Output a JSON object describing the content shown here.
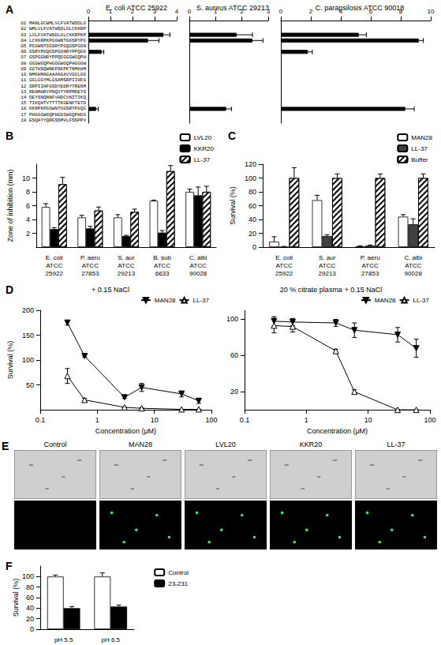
{
  "chart_data": [
    {
      "panel": "A",
      "type": "bar",
      "orientation": "horizontal",
      "title": "E. coli ATCC 25922",
      "categories": [
        "01 MANLGCWMLVLFVATWSDLG",
        "02 WMLVLFVATWSDLGLCKKRP",
        "03 LVLFVATWSDLGLCKKRPKP",
        "04 LCKKRPKPGGWNTGGSRYPG",
        "05 PGGWNTGGSRYPGQGSPGGN",
        "06 GSRYPGQGSPGGNRYPPQGG",
        "07 GSPGGNRYPPQGGGGWGQPH",
        "08 GGGWGQPHGGGWGQPHGGGW",
        "09 GGTHSQWNKPSKPKTNMKHM",
        "10 NMKHMAGAAAAGAVVGGLGG",
        "11 GGLGGYMLGSAMSRPIIHFG",
        "12 SRPIIHFGSDYEDRYYRENM",
        "13 RENMHRYPNQVYYRPMDEYS",
        "14 DEYSNQNNFVHDCVNITIKQ",
        "15 TIKQHTVTTTTKGENFTETD",
        "16 KKRPKPGGWNTGGSRYPGQG",
        "17 PHGGGWGQPHGGGWGQPHGG",
        "18 ESQAYYQRGSSMVLFSSPPV"
      ],
      "xlim": [
        0,
        4
      ],
      "xticks": [
        0,
        1,
        2,
        3,
        4
      ],
      "series": [
        {
          "name": "E. coli ATCC 25922",
          "color": "#000000",
          "values": [
            null,
            null,
            3.4,
            2.7,
            null,
            0.6,
            null,
            null,
            null,
            null,
            null,
            null,
            null,
            null,
            null,
            0.35,
            null,
            null
          ],
          "errors": [
            null,
            null,
            0.3,
            0.5,
            null,
            0.1,
            null,
            null,
            null,
            null,
            null,
            null,
            null,
            null,
            null,
            0.1,
            null,
            null
          ]
        }
      ]
    },
    {
      "type": "bar",
      "orientation": "horizontal",
      "title": "S. aureus ATCC 29213",
      "tick_labels": "x",
      "categories": [
        "01 MANLGCWMLVLFVATWSDLG",
        "02 WMLVLFVATWSDLGLCKKRP",
        "03 LVLFVATWSDLGLCKKRPKP",
        "04 LCKKRPKPGGWNTGGSRYPG",
        "05 PGGWNTGGSRYPGQGSPGGN",
        "06 GSRYPGQGSPGGNRYPPQGG",
        "07 GSPGGNRYPPQGGGGWGQPH",
        "08 GGGWGQPHGGGWGQPHGGGW",
        "09 GGTHSQWNKPSKPKTNMKHM",
        "10 NMKHMAGAAAAGAVVGGLGG",
        "11 GGLGGYMLGSAMSRPIIHFG",
        "12 SRPIIHFGSDYEDRYYRENM",
        "13 RENMHRYPNQVYYRPMDEYS",
        "14 DEYSNQNNFVHDCVNITIKQ",
        "15 TIKQHTVTTTTKGENFTETD",
        "16 KKRPKPGGWNTGGSRYPGQG",
        "17 PHGGGWGQPHGGGWGQPHGG",
        "18 ESQAYYQRGSSMVLFSSPPV"
      ],
      "xlim": [
        0,
        3
      ],
      "xticks": [
        0,
        1,
        2,
        3
      ],
      "series": [
        {
          "name": "S. aureus ATCC 29213",
          "color": "#000000",
          "values": [
            null,
            null,
            1.8,
            2.4,
            null,
            null,
            null,
            null,
            null,
            null,
            null,
            null,
            null,
            null,
            null,
            1.4,
            null,
            null
          ],
          "errors": [
            null,
            null,
            0.6,
            0.4,
            null,
            null,
            null,
            null,
            null,
            null,
            null,
            null,
            null,
            null,
            null,
            0.2,
            null,
            null
          ]
        }
      ]
    },
    {
      "type": "bar",
      "orientation": "horizontal",
      "title": "C. parapsilosis ATCC 90018",
      "tick_labels": "x",
      "categories": [
        "01 MANLGCWMLVLFVATWSDLG",
        "02 WMLVLFVATWSDLGLCKKRP",
        "03 LVLFVATWSDLGLCKKRPKP",
        "04 LCKKRPKPGGWNTGGSRYPG",
        "05 PGGWNTGGSRYPGQGSPGGN",
        "06 GSRYPGQGSPGGNRYPPQGG",
        "07 GSPGGNRYPPQGGGGWGQPH",
        "08 GGGWGQPHGGGWGQPHGGGW",
        "09 GGTHSQWNKPSKPKTNMKHM",
        "10 NMKHMAGAAAAGAVVGGLGG",
        "11 GGLGGYMLGSAMSRPIIHFG",
        "12 SRPIIHFGSDYEDRYYRENM",
        "13 RENMHRYPNQVYYRPMDEYS",
        "14 DEYSNQNNFVHDCVNITIKQ",
        "15 TIKQHTVTTTTKGENFTETD",
        "16 KKRPKPGGWNTGGSRYPGQG",
        "17 PHGGGWGQPHGGGWGQPHGG",
        "18 ESQAYYQRGSSMVLFSSPPV"
      ],
      "xlim": [
        0,
        10
      ],
      "xticks": [
        0,
        2,
        4,
        6,
        8,
        10
      ],
      "series": [
        {
          "name": "C. parapsilosis ATCC 90018",
          "color": "#000000",
          "values": [
            null,
            null,
            5.2,
            9.2,
            null,
            1.8,
            null,
            null,
            null,
            null,
            null,
            null,
            null,
            null,
            null,
            8.3,
            null,
            null
          ],
          "errors": [
            null,
            null,
            0.5,
            0.3,
            null,
            0.3,
            null,
            null,
            null,
            null,
            null,
            null,
            null,
            null,
            null,
            0.6,
            null,
            null
          ]
        }
      ]
    },
    {
      "panel": "B",
      "type": "bar",
      "ylabel": "Zone of inhibition (mm)",
      "legend": "top-right",
      "categories": [
        "E. coli\nATCC\n25922",
        "P. aeru\nATCC\n27853",
        "S. aur\nATCC\n29213",
        "B. sub\nATCC\n6633",
        "C. albi\nATCC\n90028"
      ],
      "ylim": [
        0,
        12
      ],
      "yticks": [
        2,
        4,
        6,
        8,
        10
      ],
      "series": [
        {
          "name": "LVL20",
          "color": "#ffffff",
          "values": [
            5.8,
            4.3,
            4.3,
            6.7,
            8.0
          ],
          "errors": [
            0.5,
            0.3,
            0.4,
            0.1,
            0.4
          ]
        },
        {
          "name": "KKR20",
          "color": "#000000",
          "values": [
            2.6,
            2.7,
            1.6,
            2.1,
            7.5
          ],
          "errors": [
            0.2,
            0.3,
            0.1,
            0.3,
            1.2
          ]
        },
        {
          "name": "LL-37",
          "color": "#ffffff",
          "marker": "hatched",
          "values": [
            9.1,
            5.3,
            5.1,
            11.0,
            8.0
          ],
          "errors": [
            1.0,
            0.5,
            0.4,
            0.8,
            0.8
          ]
        }
      ]
    },
    {
      "panel": "C",
      "type": "bar",
      "ylabel": "Survival (%)",
      "legend": "top-right",
      "categories": [
        "E. coli\nATCC\n25922",
        "S. aur\nATCC\n29213",
        "P. aeru\nATCC\n27853",
        "C. albi\nATCC\n90028"
      ],
      "ylim": [
        0,
        120
      ],
      "yticks": [
        0,
        20,
        40,
        60,
        80,
        100,
        120
      ],
      "series": [
        {
          "name": "MAN28",
          "color": "#ffffff",
          "values": [
            8,
            68,
            1,
            44
          ],
          "errors": [
            7,
            7,
            1,
            3
          ]
        },
        {
          "name": "LL-37",
          "color": "#404040",
          "values": [
            0,
            16,
            2,
            33
          ],
          "errors": [
            1,
            2,
            1,
            8
          ]
        },
        {
          "name": "Buffer",
          "color": "#ffffff",
          "marker": "hatched",
          "values": [
            100,
            100,
            100,
            100
          ],
          "errors": [
            15,
            6,
            6,
            6
          ]
        }
      ]
    },
    {
      "panel": "D",
      "type": "line",
      "title": "+ 0.15 NaCl",
      "ylabel": "Survival (%)",
      "xlabel": "Concentration (μM)",
      "log": "x",
      "legend": "top-right",
      "x": [
        0.3,
        0.6,
        3,
        6,
        30,
        60
      ],
      "xlim": [
        0.1,
        100
      ],
      "xticks": [
        0.1,
        1,
        10,
        100
      ],
      "ylim": [
        0,
        200
      ],
      "yticks": [
        50,
        100,
        150,
        200
      ],
      "series": [
        {
          "name": "MAN28",
          "color": "#000000",
          "marker": "triangle-down",
          "values": [
            175,
            108,
            25,
            45,
            32,
            18
          ],
          "errors": [
            5,
            2,
            2,
            8,
            6,
            5
          ]
        },
        {
          "name": "LL-37",
          "color": "#000000",
          "marker": "triangle-open",
          "values": [
            68,
            20,
            5,
            3,
            1,
            1
          ],
          "errors": [
            15,
            3,
            1,
            1,
            0,
            0
          ]
        }
      ]
    },
    {
      "type": "line",
      "title": "20 % citrate plasma + 0.15 NaCl",
      "xlabel": "Concentration (μM)",
      "log": "x",
      "legend": "top-right",
      "x": [
        0.3,
        0.6,
        3,
        6,
        30,
        60
      ],
      "xlim": [
        0.1,
        100
      ],
      "xticks": [
        0.1,
        1,
        10,
        100
      ],
      "ylim": [
        0,
        110
      ],
      "yticks": [
        20,
        60,
        100
      ],
      "series": [
        {
          "name": "MAN28",
          "color": "#000000",
          "marker": "triangle-down",
          "values": [
            98,
            97,
            96,
            88,
            83,
            68
          ],
          "errors": [
            5,
            4,
            4,
            8,
            8,
            10
          ]
        },
        {
          "name": "LL-37",
          "color": "#000000",
          "marker": "triangle-open",
          "values": [
            93,
            92,
            65,
            20,
            0,
            0
          ],
          "errors": [
            8,
            6,
            2,
            2,
            0,
            0
          ]
        }
      ]
    },
    {
      "panel": "F",
      "type": "bar",
      "ylabel": "Survival (%)",
      "legend": "top-right",
      "categories": [
        "pH 5.5",
        "pH 6.5"
      ],
      "ylim": [
        0,
        120
      ],
      "yticks": [
        0,
        20,
        40,
        60,
        80,
        100
      ],
      "series": [
        {
          "name": "Control",
          "color": "#ffffff",
          "values": [
            100,
            100
          ],
          "errors": [
            3,
            7
          ]
        },
        {
          "name": "23-231",
          "color": "#000000",
          "values": [
            40,
            43
          ],
          "errors": [
            3,
            3
          ]
        }
      ]
    }
  ],
  "image_panel": {
    "panel": "E",
    "labels": [
      "Control",
      "MAN28",
      "LVL20",
      "KKR20",
      "LL-37"
    ]
  }
}
